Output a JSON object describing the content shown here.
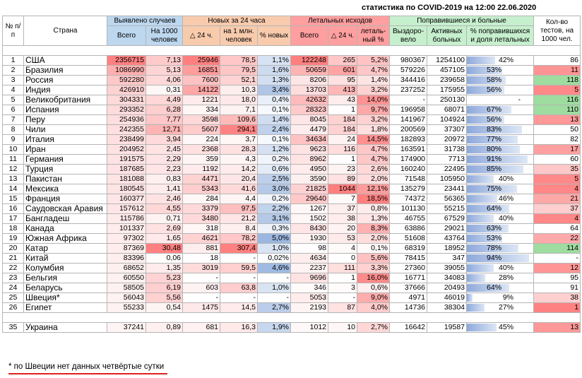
{
  "caption": "статистика по COVID-2019 на 12:00 22.06.2020",
  "headers": {
    "num": "№ п/п",
    "country": "Страна",
    "detected": "Выявлено случаев",
    "detected_total": "Всего",
    "detected_per1000": "На 1000 человек",
    "new24": "Новых за 24 часа",
    "new24_delta": "△ 24 ч.",
    "new24_per1m": "на 1 млн. человек",
    "new24_pct": "% новых",
    "deaths": "Летальных исходов",
    "deaths_total": "Всего",
    "deaths_delta": "△ 24 ч.",
    "deaths_pct": "леталь-ный %",
    "recovered": "Поправившиеся и больные",
    "recovered_total": "Выздоро-вело",
    "active": "Активных больных",
    "recov_pct": "% поправившихся и доля летальных",
    "tests": "Кол-во тестов, на 1000 чел."
  },
  "rows": [
    {
      "n": "1",
      "country": "США",
      "total": "2356715",
      "per1000": "7,13",
      "d24": "25946",
      "per1m": "78,5",
      "pnew": "1,1%",
      "deaths": "122248",
      "dd24": "265",
      "dpct": "5,2%",
      "recov": "980367",
      "active": "1254100",
      "rpct": "42%",
      "tests": "86"
    },
    {
      "n": "2",
      "country": "Бразилия",
      "total": "1086990",
      "per1000": "5,13",
      "d24": "16851",
      "per1m": "79,5",
      "pnew": "1,6%",
      "deaths": "50659",
      "dd24": "601",
      "dpct": "4,7%",
      "recov": "579226",
      "active": "457105",
      "rpct": "53%",
      "tests": "11"
    },
    {
      "n": "3",
      "country": "Россия",
      "total": "592280",
      "per1000": "4,06",
      "d24": "7600",
      "per1m": "52,1",
      "pnew": "1,3%",
      "deaths": "8206",
      "dd24": "95",
      "dpct": "1,4%",
      "recov": "344416",
      "active": "239658",
      "rpct": "58%",
      "tests": "118"
    },
    {
      "n": "4",
      "country": "Индия",
      "total": "426910",
      "per1000": "0,31",
      "d24": "14122",
      "per1m": "10,3",
      "pnew": "3,4%",
      "deaths": "13703",
      "dd24": "413",
      "dpct": "3,2%",
      "recov": "237252",
      "active": "175955",
      "rpct": "56%",
      "tests": "5"
    },
    {
      "n": "5",
      "country": "Великобритания",
      "total": "304331",
      "per1000": "4,49",
      "d24": "1221",
      "per1m": "18,0",
      "pnew": "0,4%",
      "deaths": "42632",
      "dd24": "43",
      "dpct": "14,0%",
      "recov": "-",
      "active": "250130",
      "rpct": "-",
      "tests": "116"
    },
    {
      "n": "6",
      "country": "Испания",
      "total": "293352",
      "per1000": "6,28",
      "d24": "334",
      "per1m": "7,1",
      "pnew": "0,1%",
      "deaths": "28323",
      "dd24": "1",
      "dpct": "9,7%",
      "recov": "196958",
      "active": "68071",
      "rpct": "67%",
      "tests": "110"
    },
    {
      "n": "7",
      "country": "Перу",
      "total": "254936",
      "per1000": "7,77",
      "d24": "3598",
      "per1m": "109,6",
      "pnew": "1,4%",
      "deaths": "8045",
      "dd24": "184",
      "dpct": "3,2%",
      "recov": "141967",
      "active": "104924",
      "rpct": "56%",
      "tests": "13"
    },
    {
      "n": "8",
      "country": "Чили",
      "total": "242355",
      "per1000": "12,71",
      "d24": "5607",
      "per1m": "294,1",
      "pnew": "2,4%",
      "deaths": "4479",
      "dd24": "184",
      "dpct": "1,8%",
      "recov": "200569",
      "active": "37307",
      "rpct": "83%",
      "tests": "50"
    },
    {
      "n": "9",
      "country": "Италия",
      "total": "238499",
      "per1000": "3,94",
      "d24": "224",
      "per1m": "3,7",
      "pnew": "0,1%",
      "deaths": "34634",
      "dd24": "24",
      "dpct": "14,5%",
      "recov": "182893",
      "active": "20972",
      "rpct": "77%",
      "tests": "82"
    },
    {
      "n": "10",
      "country": "Иран",
      "total": "204952",
      "per1000": "2,45",
      "d24": "2368",
      "per1m": "28,3",
      "pnew": "1,2%",
      "deaths": "9623",
      "dd24": "116",
      "dpct": "4,7%",
      "recov": "163591",
      "active": "31738",
      "rpct": "80%",
      "tests": "17"
    },
    {
      "n": "11",
      "country": "Германия",
      "total": "191575",
      "per1000": "2,29",
      "d24": "359",
      "per1m": "4,3",
      "pnew": "0,2%",
      "deaths": "8962",
      "dd24": "1",
      "dpct": "4,7%",
      "recov": "174900",
      "active": "7713",
      "rpct": "91%",
      "tests": "60"
    },
    {
      "n": "12",
      "country": "Турция",
      "total": "187685",
      "per1000": "2,23",
      "d24": "1192",
      "per1m": "14,2",
      "pnew": "0,6%",
      "deaths": "4950",
      "dd24": "23",
      "dpct": "2,6%",
      "recov": "160240",
      "active": "22495",
      "rpct": "85%",
      "tests": "35"
    },
    {
      "n": "13",
      "country": "Пакистан",
      "total": "181088",
      "per1000": "0,83",
      "d24": "4471",
      "per1m": "20,4",
      "pnew": "2,5%",
      "deaths": "3590",
      "dd24": "89",
      "dpct": "2,0%",
      "recov": "71548",
      "active": "105950",
      "rpct": "40%",
      "tests": "5"
    },
    {
      "n": "14",
      "country": "Мексика",
      "total": "180545",
      "per1000": "1,41",
      "d24": "5343",
      "per1m": "41,6",
      "pnew": "3,0%",
      "deaths": "21825",
      "dd24": "1044",
      "dpct": "12,1%",
      "recov": "135279",
      "active": "23441",
      "rpct": "75%",
      "tests": "4"
    },
    {
      "n": "15",
      "country": "Франция",
      "total": "160377",
      "per1000": "2,46",
      "d24": "284",
      "per1m": "4,4",
      "pnew": "0,2%",
      "deaths": "29640",
      "dd24": "7",
      "dpct": "18,5%",
      "recov": "74372",
      "active": "56365",
      "rpct": "46%",
      "tests": "21"
    },
    {
      "n": "16",
      "country": "Саудовская Аравия",
      "total": "157612",
      "per1000": "4,55",
      "d24": "3379",
      "per1m": "97,5",
      "pnew": "2,2%",
      "deaths": "1267",
      "dd24": "37",
      "dpct": "0,8%",
      "recov": "101130",
      "active": "55215",
      "rpct": "64%",
      "tests": "37"
    },
    {
      "n": "17",
      "country": "Бангладеш",
      "total": "115786",
      "per1000": "0,71",
      "d24": "3480",
      "per1m": "21,2",
      "pnew": "3,1%",
      "deaths": "1502",
      "dd24": "38",
      "dpct": "1,3%",
      "recov": "46755",
      "active": "67529",
      "rpct": "40%",
      "tests": "4"
    },
    {
      "n": "18",
      "country": "Канада",
      "total": "101337",
      "per1000": "2,69",
      "d24": "318",
      "per1m": "8,4",
      "pnew": "0,3%",
      "deaths": "8430",
      "dd24": "20",
      "dpct": "8,3%",
      "recov": "63886",
      "active": "29021",
      "rpct": "63%",
      "tests": "64"
    },
    {
      "n": "19",
      "country": "Южная Африка",
      "total": "97302",
      "per1000": "1,65",
      "d24": "4621",
      "per1m": "78,2",
      "pnew": "5,0%",
      "deaths": "1930",
      "dd24": "53",
      "dpct": "2,0%",
      "recov": "51608",
      "active": "43764",
      "rpct": "53%",
      "tests": "22"
    },
    {
      "n": "20",
      "country": "Катар",
      "total": "87369",
      "per1000": "30,48",
      "d24": "881",
      "per1m": "307,4",
      "pnew": "1,0%",
      "deaths": "98",
      "dd24": "4",
      "dpct": "0,1%",
      "recov": "68319",
      "active": "18952",
      "rpct": "78%",
      "tests": "114"
    },
    {
      "n": "21",
      "country": "Китай",
      "total": "83396",
      "per1000": "0,06",
      "d24": "18",
      "per1m": "-",
      "pnew": "0,02%",
      "deaths": "4634",
      "dd24": "0",
      "dpct": "5,6%",
      "recov": "78415",
      "active": "347",
      "rpct": "94%",
      "tests": "-"
    },
    {
      "n": "22",
      "country": "Колумбия",
      "total": "68652",
      "per1000": "1,35",
      "d24": "3019",
      "per1m": "59,5",
      "pnew": "4,6%",
      "deaths": "2237",
      "dd24": "111",
      "dpct": "3,3%",
      "recov": "27360",
      "active": "39055",
      "rpct": "40%",
      "tests": "12"
    },
    {
      "n": "23",
      "country": "Бельгия",
      "total": "60550",
      "per1000": "5,23",
      "d24": "-",
      "per1m": "-",
      "pnew": "-",
      "deaths": "9696",
      "dd24": "1",
      "dpct": "16,0%",
      "recov": "16771",
      "active": "34083",
      "rpct": "28%",
      "tests": "95"
    },
    {
      "n": "24",
      "country": "Беларусь",
      "total": "58505",
      "per1000": "6,19",
      "d24": "603",
      "per1m": "63,8",
      "pnew": "1,0%",
      "deaths": "346",
      "dd24": "3",
      "dpct": "0,6%",
      "recov": "37666",
      "active": "20493",
      "rpct": "64%",
      "tests": "91"
    },
    {
      "n": "25",
      "country": "Швеция*",
      "total": "56043",
      "per1000": "5,56",
      "d24": "-",
      "per1m": "-",
      "pnew": "-",
      "deaths": "5053",
      "dd24": "-",
      "dpct": "9,0%",
      "recov": "4971",
      "active": "46019",
      "rpct": "9%",
      "tests": "38"
    },
    {
      "n": "26",
      "country": "Египет",
      "total": "55233",
      "per1000": "0,54",
      "d24": "1475",
      "per1m": "14,5",
      "pnew": "2,7%",
      "deaths": "2193",
      "dd24": "87",
      "dpct": "4,0%",
      "recov": "14736",
      "active": "38304",
      "rpct": "27%",
      "tests": "1"
    }
  ],
  "extra_row": {
    "n": "35",
    "country": "Украина",
    "total": "37241",
    "per1000": "0,89",
    "d24": "681",
    "per1m": "16,3",
    "pnew": "1,9%",
    "deaths": "1012",
    "dd24": "10",
    "dpct": "2,7%",
    "recov": "16642",
    "active": "19587",
    "rpct": "45%",
    "tests": "13"
  },
  "footnote": "* по Швеции нет данных четвёртые сутки",
  "colors": {
    "header_blue": "#bdd7ee",
    "header_orange": "#f8cbad",
    "header_red": "#ff9f9f",
    "header_green": "#c6efce",
    "heat_red": "#ff7f7f",
    "heat_blue": "#9bb7e0",
    "bar_blue": "#8ea9db"
  }
}
